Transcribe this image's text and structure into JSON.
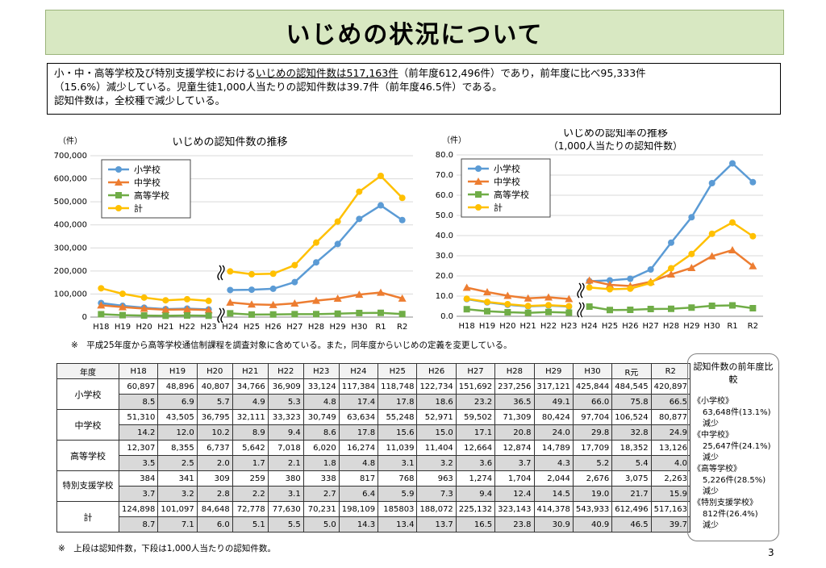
{
  "page_title": "いじめの状況について",
  "summary": {
    "line1_pre": "小・中・高等学校及び特別支援学校における",
    "line1_ul": "いじめの認知件数は517,163件",
    "line1_post": "（前年度612,496件）であり，前年度に比べ95,333件",
    "line2": "（15.6%）減少している。児童生徒1,000人当たりの認知件数は39.7件（前年度46.5件）である。",
    "line3": "認知件数は，全校種で減少している。"
  },
  "chart_data": [
    {
      "type": "line",
      "title": "いじめの認知件数の推移",
      "yunit": "（件）",
      "categories": [
        "H18",
        "H19",
        "H20",
        "H21",
        "H22",
        "H23",
        "H24",
        "H25",
        "H26",
        "H27",
        "H28",
        "H29",
        "H30",
        "R1",
        "R2"
      ],
      "yticks": [
        "0",
        "100,000",
        "200,000",
        "300,000",
        "400,000",
        "500,000",
        "600,000",
        "700,000"
      ],
      "ylim": [
        0,
        700000
      ],
      "grid": true,
      "legend": "top-left",
      "series": [
        {
          "name": "小学校",
          "color": "#5b9bd5",
          "marker": "circle",
          "values": [
            60897,
            48896,
            40807,
            34766,
            36909,
            33124,
            117384,
            118748,
            122734,
            151692,
            237256,
            317121,
            425844,
            484545,
            420897
          ]
        },
        {
          "name": "中学校",
          "color": "#ed7d31",
          "marker": "triangle",
          "values": [
            51310,
            43505,
            36795,
            32111,
            33323,
            30749,
            63634,
            55248,
            52971,
            59502,
            71309,
            80424,
            97704,
            106524,
            80877
          ]
        },
        {
          "name": "高等学校",
          "color": "#70ad47",
          "marker": "square",
          "values": [
            12307,
            8355,
            6737,
            5642,
            7018,
            6020,
            16274,
            11039,
            11404,
            12664,
            12874,
            14789,
            17709,
            18352,
            13126
          ]
        },
        {
          "name": "計",
          "color": "#ffc000",
          "marker": "circle",
          "values": [
            124898,
            101097,
            84648,
            72778,
            77630,
            70231,
            198109,
            185803,
            188072,
            225132,
            323143,
            414378,
            543933,
            612496,
            517163
          ]
        }
      ]
    },
    {
      "type": "line",
      "title": "いじめの認知率の推移",
      "subtitle": "（1,000人当たりの認知件数）",
      "yunit": "（件）",
      "categories": [
        "H18",
        "H19",
        "H20",
        "H21",
        "H22",
        "H23",
        "H24",
        "H25",
        "H26",
        "H27",
        "H28",
        "H29",
        "H30",
        "R1",
        "R2"
      ],
      "yticks": [
        "0.0",
        "10.0",
        "20.0",
        "30.0",
        "40.0",
        "50.0",
        "60.0",
        "70.0",
        "80.0"
      ],
      "ylim": [
        0,
        80
      ],
      "grid": true,
      "legend": "top-left",
      "series": [
        {
          "name": "小学校",
          "color": "#5b9bd5",
          "marker": "circle",
          "values": [
            8.5,
            6.9,
            5.7,
            4.9,
            5.3,
            4.8,
            17.4,
            17.8,
            18.6,
            23.2,
            36.5,
            49.1,
            66.0,
            75.8,
            66.5
          ]
        },
        {
          "name": "中学校",
          "color": "#ed7d31",
          "marker": "triangle",
          "values": [
            14.2,
            12.0,
            10.2,
            8.9,
            9.4,
            8.6,
            17.8,
            15.6,
            15.0,
            17.1,
            20.8,
            24.0,
            29.8,
            32.8,
            24.9
          ]
        },
        {
          "name": "高等学校",
          "color": "#70ad47",
          "marker": "square",
          "values": [
            3.5,
            2.5,
            2.0,
            1.7,
            2.1,
            1.8,
            4.8,
            3.1,
            3.2,
            3.6,
            3.7,
            4.3,
            5.2,
            5.4,
            4.0
          ]
        },
        {
          "name": "計",
          "color": "#ffc000",
          "marker": "circle",
          "values": [
            8.7,
            7.1,
            6.0,
            5.1,
            5.5,
            5.0,
            14.3,
            13.4,
            13.7,
            16.5,
            23.8,
            30.9,
            40.9,
            46.5,
            39.7
          ]
        }
      ]
    }
  ],
  "note_definition": "※　平成25年度から高等学校通信制課程を調査対象に含めている。また，同年度からいじめの定義を変更している。",
  "table": {
    "header_label": "年度",
    "years": [
      "H18",
      "H19",
      "H20",
      "H21",
      "H22",
      "H23",
      "H24",
      "H25",
      "H26",
      "H27",
      "H28",
      "H29",
      "H30",
      "R元",
      "R2"
    ],
    "rows": [
      {
        "label": "小学校",
        "counts": [
          "60,897",
          "48,896",
          "40,807",
          "34,766",
          "36,909",
          "33,124",
          "117,384",
          "118,748",
          "122,734",
          "151,692",
          "237,256",
          "317,121",
          "425,844",
          "484,545",
          "420,897"
        ],
        "rates": [
          "8.5",
          "6.9",
          "5.7",
          "4.9",
          "5.3",
          "4.8",
          "17.4",
          "17.8",
          "18.6",
          "23.2",
          "36.5",
          "49.1",
          "66.0",
          "75.8",
          "66.5"
        ]
      },
      {
        "label": "中学校",
        "counts": [
          "51,310",
          "43,505",
          "36,795",
          "32,111",
          "33,323",
          "30,749",
          "63,634",
          "55,248",
          "52,971",
          "59,502",
          "71,309",
          "80,424",
          "97,704",
          "106,524",
          "80,877"
        ],
        "rates": [
          "14.2",
          "12.0",
          "10.2",
          "8.9",
          "9.4",
          "8.6",
          "17.8",
          "15.6",
          "15.0",
          "17.1",
          "20.8",
          "24.0",
          "29.8",
          "32.8",
          "24.9"
        ]
      },
      {
        "label": "高等学校",
        "counts": [
          "12,307",
          "8,355",
          "6,737",
          "5,642",
          "7,018",
          "6,020",
          "16,274",
          "11,039",
          "11,404",
          "12,664",
          "12,874",
          "14,789",
          "17,709",
          "18,352",
          "13,126"
        ],
        "rates": [
          "3.5",
          "2.5",
          "2.0",
          "1.7",
          "2.1",
          "1.8",
          "4.8",
          "3.1",
          "3.2",
          "3.6",
          "3.7",
          "4.3",
          "5.2",
          "5.4",
          "4.0"
        ]
      },
      {
        "label": "特別支援学校",
        "counts": [
          "384",
          "341",
          "309",
          "259",
          "380",
          "338",
          "817",
          "768",
          "963",
          "1,274",
          "1,704",
          "2,044",
          "2,676",
          "3,075",
          "2,263"
        ],
        "rates": [
          "3.7",
          "3.2",
          "2.8",
          "2.2",
          "3.1",
          "2.7",
          "6.4",
          "5.9",
          "7.3",
          "9.4",
          "12.4",
          "14.5",
          "19.0",
          "21.7",
          "15.9"
        ]
      },
      {
        "label": "計",
        "counts": [
          "124,898",
          "101,097",
          "84,648",
          "72,778",
          "77,630",
          "70,231",
          "198,109",
          "185803",
          "188,072",
          "225,132",
          "323,143",
          "414,378",
          "543,933",
          "612,496",
          "517,163"
        ],
        "rates": [
          "8.7",
          "7.1",
          "6.0",
          "5.1",
          "5.5",
          "5.0",
          "14.3",
          "13.4",
          "13.7",
          "16.5",
          "23.8",
          "30.9",
          "40.9",
          "46.5",
          "39.7"
        ]
      }
    ]
  },
  "note_table": "※　上段は認知件数，下段は1,000人当たりの認知件数。",
  "comparison": {
    "heading": "認知件数の前年度比較",
    "items": [
      {
        "label": "《小学校》",
        "value": "63,648件(13.1%)",
        "change": "減少"
      },
      {
        "label": "《中学校》",
        "value": "25,647件(24.1%)",
        "change": "減少"
      },
      {
        "label": "《高等学校》",
        "value": "5,226件(28.5%)",
        "change": "減少"
      },
      {
        "label": "《特別支援学校》",
        "value": "812件(26.4%)",
        "change": "減少"
      }
    ]
  },
  "page_number": "3"
}
